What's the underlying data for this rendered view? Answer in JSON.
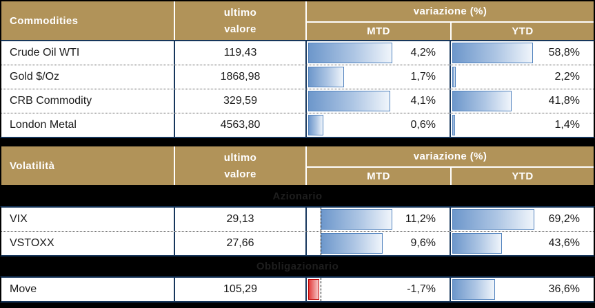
{
  "colors": {
    "header_gold": "#b19359",
    "grid_navy": "#16365c",
    "bar_blue_border": "#4f81bd",
    "bar_blue_fill_start": "#6d97cb",
    "bar_blue_fill_end": "#f0f5fb",
    "bar_red_border": "#c00000",
    "bar_red_fill_start": "#e13b3b",
    "background": "#000000"
  },
  "header_labels": {
    "ultimo": "ultimo",
    "valore": "valore",
    "variazione": "variazione (%)",
    "mtd": "MTD",
    "ytd": "YTD"
  },
  "tables": [
    {
      "title": "Commodities",
      "rows": [
        {
          "name": "Crude Oil WTI",
          "value": "119,43",
          "mtd": "4,2%",
          "ytd": "58,8%",
          "mtd_bar": "59%",
          "ytd_bar": "56.5%"
        },
        {
          "name": "Gold $/Oz",
          "value": "1868,98",
          "mtd": "1,7%",
          "ytd": "2,2%",
          "mtd_bar": "25%",
          "ytd_bar": "2.5%"
        },
        {
          "name": "CRB Commodity",
          "value": "329,59",
          "mtd": "4,1%",
          "ytd": "41,8%",
          "mtd_bar": "57.5%",
          "ytd_bar": "41.5%"
        },
        {
          "name": "London Metal",
          "value": "4563,80",
          "mtd": "0,6%",
          "ytd": "1,4%",
          "mtd_bar": "10.5%",
          "ytd_bar": "2%"
        }
      ]
    },
    {
      "title": "Volatilità",
      "sub_labels": [
        "Azionario",
        "Obbligazionario"
      ],
      "rows": [
        {
          "name": "VIX",
          "value": "29,13",
          "mtd": "11,2%",
          "ytd": "69,2%",
          "mtd_bar": "50.5%",
          "ytd_bar": "57.5%"
        },
        {
          "name": "VSTOXX",
          "value": "27,66",
          "mtd": "9,6%",
          "ytd": "43,6%",
          "mtd_bar": "43.5%",
          "ytd_bar": "35%"
        },
        {
          "name": "Move",
          "value": "105,29",
          "mtd": "-1,7%",
          "ytd": "36,6%",
          "mtd_bar": "7.5%",
          "ytd_bar": "30%"
        }
      ]
    }
  ],
  "chart_data": [
    {
      "type": "table",
      "title": "Commodities",
      "columns": [
        "ultimo valore",
        "variazione % MTD",
        "variazione % YTD"
      ],
      "rows": [
        {
          "label": "Crude Oil WTI",
          "ultimo_valore": 119.43,
          "mtd_pct": 4.2,
          "ytd_pct": 58.8
        },
        {
          "label": "Gold $/Oz",
          "ultimo_valore": 1868.98,
          "mtd_pct": 1.7,
          "ytd_pct": 2.2
        },
        {
          "label": "CRB Commodity",
          "ultimo_valore": 329.59,
          "mtd_pct": 4.1,
          "ytd_pct": 41.8
        },
        {
          "label": "London Metal",
          "ultimo_valore": 4563.8,
          "mtd_pct": 0.6,
          "ytd_pct": 1.4
        }
      ],
      "layout_hints": "MTD/YTD cells contain horizontal gradient data-bars scaled per column; blue = positive"
    },
    {
      "type": "table",
      "title": "Volatilità",
      "columns": [
        "ultimo valore",
        "variazione % MTD",
        "variazione % YTD"
      ],
      "sections": [
        {
          "label": "Azionario",
          "members": [
            "VIX",
            "VSTOXX"
          ]
        },
        {
          "label": "Obbligazionario",
          "members": [
            "Move"
          ]
        }
      ],
      "rows": [
        {
          "label": "VIX",
          "ultimo_valore": 29.13,
          "mtd_pct": 11.2,
          "ytd_pct": 69.2
        },
        {
          "label": "VSTOXX",
          "ultimo_valore": 27.66,
          "mtd_pct": 9.6,
          "ytd_pct": 43.6
        },
        {
          "label": "Move",
          "ultimo_valore": 105.29,
          "mtd_pct": -1.7,
          "ytd_pct": 36.6
        }
      ],
      "layout_hints": "MTD column has dashed zero axis offset from left; negative values drawn as red bar left of axis"
    }
  ]
}
